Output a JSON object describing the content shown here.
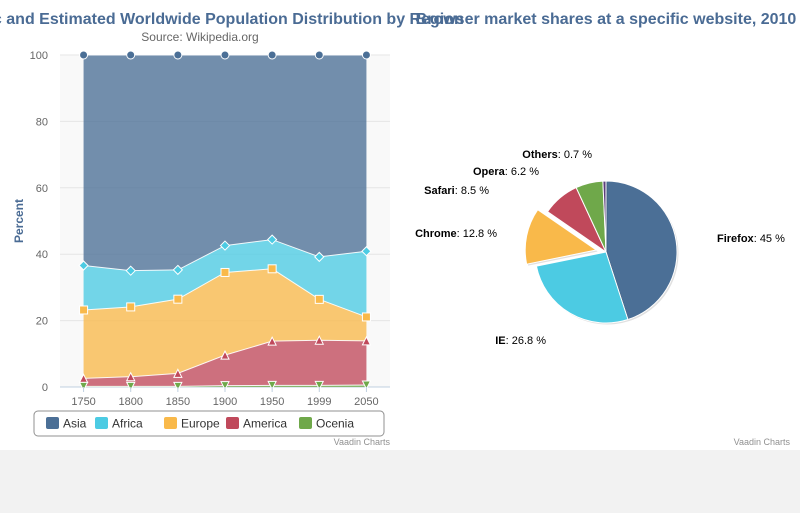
{
  "credits": {
    "left": "Vaadin Charts",
    "right": "Vaadin Charts"
  },
  "chart_data": [
    {
      "type": "area",
      "stacking": "percent",
      "title": "Historic and Estimated Worldwide Population Distribution by Region",
      "subtitle": "Source: Wikipedia.org",
      "categories": [
        "1750",
        "1800",
        "1850",
        "1900",
        "1950",
        "1999",
        "2050"
      ],
      "ylabel": "Percent",
      "ylim": [
        0,
        100
      ],
      "yticks": [
        "0",
        "20",
        "40",
        "60",
        "80",
        "100"
      ],
      "legend_position": "bottom",
      "series": [
        {
          "name": "Asia",
          "color": "#4b6f96",
          "marker": "circle",
          "values": [
            63.4,
            64.9,
            64.6,
            57.4,
            55.6,
            60.8,
            59.1
          ]
        },
        {
          "name": "Africa",
          "color": "#4ccbe3",
          "marker": "diamond",
          "values": [
            13.4,
            10.9,
            8.8,
            8.1,
            8.8,
            12.8,
            19.8
          ]
        },
        {
          "name": "Europe",
          "color": "#f9b94a",
          "marker": "square",
          "values": [
            20.6,
            21.0,
            22.3,
            24.9,
            21.8,
            12.3,
            7.2
          ]
        },
        {
          "name": "America",
          "color": "#c0495b",
          "marker": "triangle",
          "values": [
            2.4,
            2.9,
            3.9,
            9.2,
            13.3,
            13.6,
            13.3
          ]
        },
        {
          "name": "Ocenia",
          "color": "#6fa84a",
          "marker": "triangle-down",
          "values": [
            0.2,
            0.2,
            0.2,
            0.4,
            0.5,
            0.5,
            0.6
          ]
        }
      ]
    },
    {
      "type": "pie",
      "title": "Browser market shares at a specific website, 2010",
      "series": [
        {
          "name": "Firefox",
          "value": 45.0,
          "label": "45 %",
          "color": "#4b6f96",
          "sliced": false
        },
        {
          "name": "IE",
          "value": 26.8,
          "label": "26.8 %",
          "color": "#4ccbe3",
          "sliced": false
        },
        {
          "name": "Chrome",
          "value": 12.8,
          "label": "12.8 %",
          "color": "#f9b94a",
          "sliced": true
        },
        {
          "name": "Safari",
          "value": 8.5,
          "label": "8.5 %",
          "color": "#c0495b",
          "sliced": false
        },
        {
          "name": "Opera",
          "value": 6.2,
          "label": "6.2 %",
          "color": "#6fa84a",
          "sliced": false
        },
        {
          "name": "Others",
          "value": 0.7,
          "label": "0.7 %",
          "color": "#5a3d7a",
          "sliced": false
        }
      ]
    }
  ]
}
